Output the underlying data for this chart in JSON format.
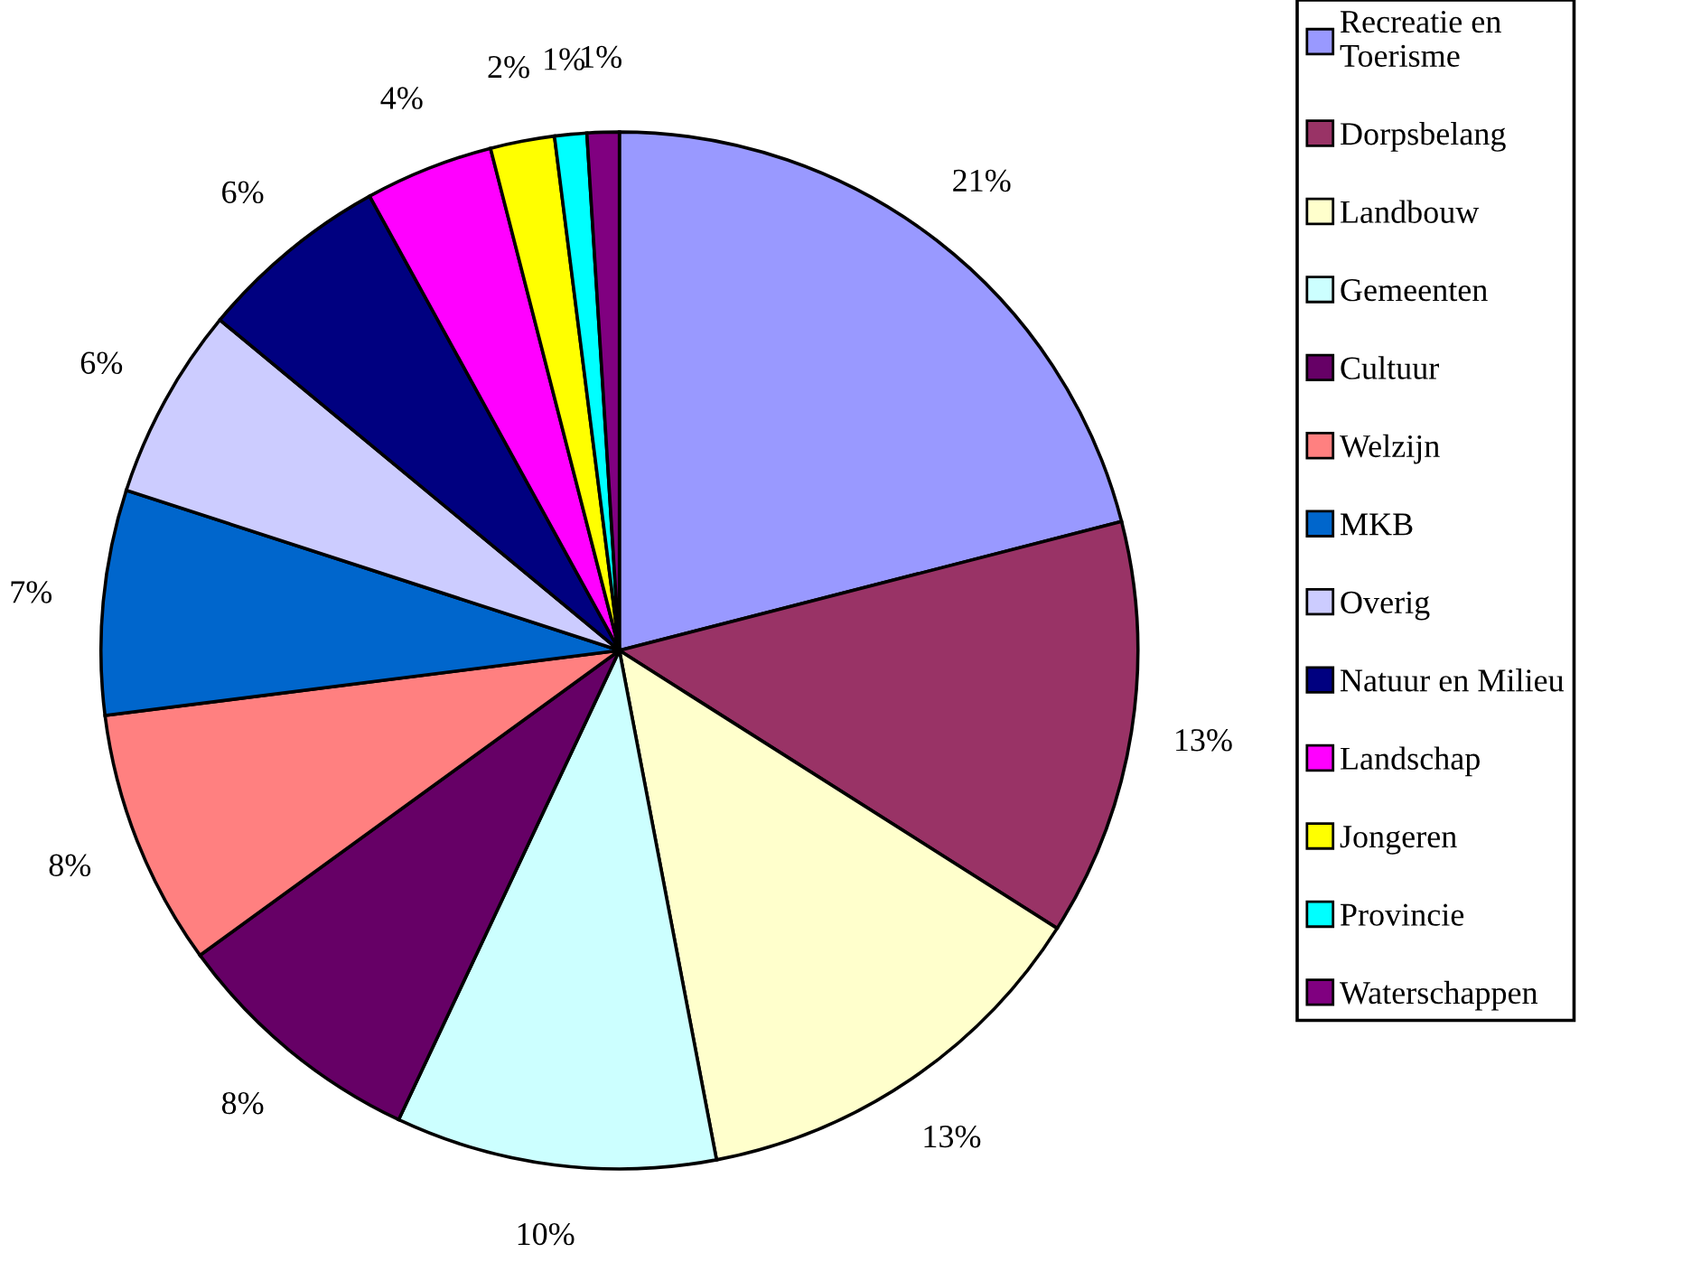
{
  "chart_data": {
    "type": "pie",
    "categories": [
      "Recreatie en\nToerisme",
      "Dorpsbelang",
      "Landbouw",
      "Gemeenten",
      "Cultuur",
      "Welzijn",
      "MKB",
      "Overig",
      "Natuur en Milieu",
      "Landschap",
      "Jongeren",
      "Provincie",
      "Waterschappen"
    ],
    "values": [
      21,
      13,
      13,
      10,
      8,
      8,
      7,
      6,
      6,
      4,
      2,
      1,
      1
    ],
    "value_labels": [
      "21%",
      "13%",
      "13%",
      "10%",
      "8%",
      "8%",
      "7%",
      "6%",
      "6%",
      "4%",
      "2%",
      "1%",
      "1%"
    ],
    "colors": [
      "#9999ff",
      "#993366",
      "#ffffcc",
      "#ccffff",
      "#660066",
      "#ff8080",
      "#0066cc",
      "#ccccff",
      "#000080",
      "#ff00ff",
      "#ffff00",
      "#00ffff",
      "#800080"
    ],
    "legend": "right"
  }
}
